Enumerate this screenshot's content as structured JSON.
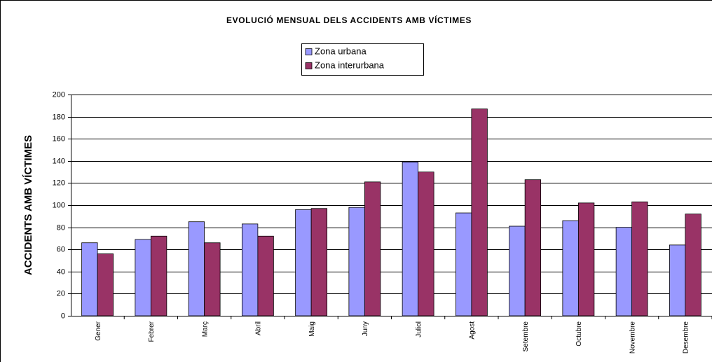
{
  "chart_data": {
    "type": "bar",
    "title": "EVOLUCIÓ MENSUAL DELS ACCIDENTS AMB VÍCTIMES",
    "y_label": "ACCIDENTS AMB VÍCTIMES",
    "categories": [
      "Gener",
      "Febrer",
      "Març",
      "Abril",
      "Maig",
      "Juny",
      "Juliol",
      "Agost",
      "Setembre",
      "Octubre",
      "Novembre",
      "Desembre"
    ],
    "series": [
      {
        "name": "Zona urbana",
        "color": "#9999ff",
        "values": [
          66,
          69,
          85,
          83,
          96,
          98,
          139,
          93,
          81,
          86,
          80,
          64
        ]
      },
      {
        "name": "Zona interurbana",
        "color": "#993366",
        "values": [
          56,
          72,
          66,
          72,
          97,
          121,
          130,
          187,
          123,
          102,
          103,
          92
        ]
      }
    ],
    "ylim": [
      0,
      200
    ],
    "yticks": [
      0,
      20,
      40,
      60,
      80,
      100,
      120,
      140,
      160,
      180,
      200
    ],
    "grid": true,
    "legend": "top"
  }
}
